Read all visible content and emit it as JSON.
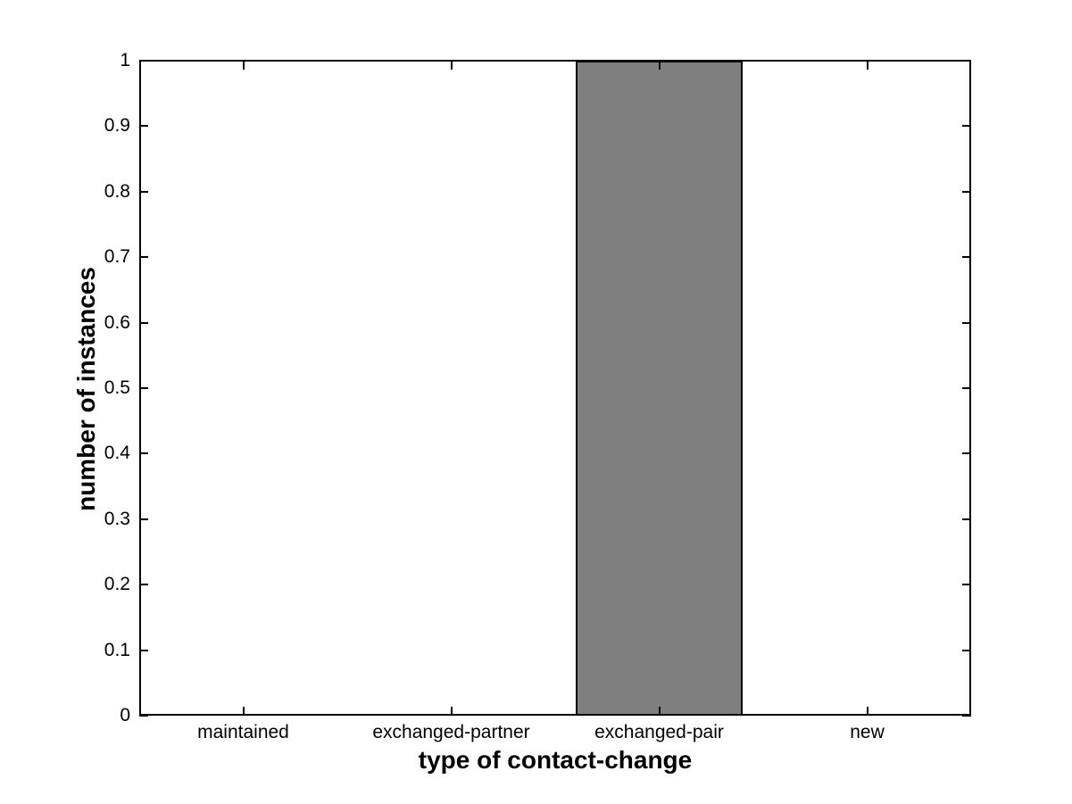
{
  "figure": {
    "background_color": "#ffffff",
    "axis_color": "#000000",
    "text_color": "#000000"
  },
  "chart_data": {
    "type": "bar",
    "title": "",
    "categories": [
      "maintained",
      "exchanged-partner",
      "exchanged-pair",
      "new"
    ],
    "values": [
      0,
      0,
      1,
      0
    ],
    "xlabel": "type of contact-change",
    "ylabel": "number of instances",
    "ylim": [
      0,
      1
    ],
    "yticks": [
      0,
      0.1,
      0.2,
      0.3,
      0.4,
      0.5,
      0.6,
      0.7,
      0.8,
      0.9,
      1
    ],
    "ytick_labels": [
      "0",
      "0.1",
      "0.2",
      "0.3",
      "0.4",
      "0.5",
      "0.6",
      "0.7",
      "0.8",
      "0.9",
      "1"
    ],
    "bar_width_fraction": 0.8,
    "bar_fill_color": "#7f7f7f",
    "bar_edge_color": "#000000",
    "grid": false,
    "legend": "none",
    "box": true,
    "tick_direction": "in",
    "tick_mirrored": true
  }
}
